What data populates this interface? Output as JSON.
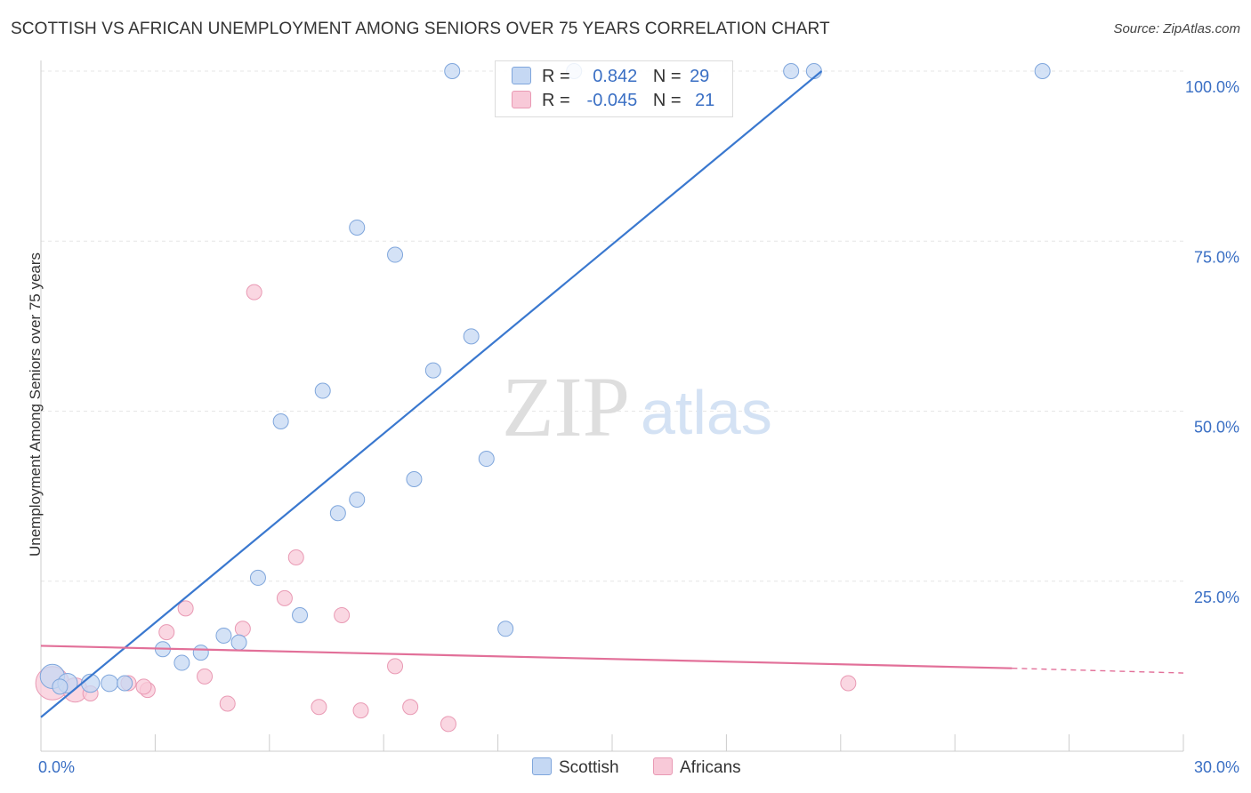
{
  "title": "SCOTTISH VS AFRICAN UNEMPLOYMENT AMONG SENIORS OVER 75 YEARS CORRELATION CHART",
  "source": "Source: ZipAtlas.com",
  "watermark": {
    "zip": "ZIP",
    "atlas": "atlas"
  },
  "stats": {
    "scottish": {
      "r_label": "R =",
      "r_value": "0.842",
      "n_label": "N =",
      "n_value": "29"
    },
    "africans": {
      "r_label": "R =",
      "r_value": "-0.045",
      "n_label": "N =",
      "n_value": "21"
    }
  },
  "legend": {
    "scottish": "Scottish",
    "africans": "Africans"
  },
  "colors": {
    "scottish_fill": "#c5d8f3",
    "scottish_stroke": "#7fa6dc",
    "scottish_line": "#3a78cf",
    "africans_fill": "#f8c9d8",
    "africans_stroke": "#e99ab4",
    "africans_line": "#e27099",
    "axis_text": "#3a6fc4",
    "grid": "#e6e6e6"
  },
  "chart_data": {
    "type": "scatter",
    "xlabel": "",
    "ylabel": "Unemployment Among Seniors over 75 years",
    "xlim": [
      0,
      30
    ],
    "ylim": [
      0,
      100
    ],
    "x_ticks": [
      "0.0%",
      "30.0%"
    ],
    "y_ticks": [
      "25.0%",
      "50.0%",
      "75.0%",
      "100.0%"
    ],
    "y_tick_values": [
      25,
      50,
      75,
      100
    ],
    "grid": true,
    "legend_position": "bottom-center",
    "series": [
      {
        "name": "Scottish",
        "points": [
          [
            0.3,
            11,
            1.6
          ],
          [
            0.7,
            10,
            1.3
          ],
          [
            1.3,
            10,
            1.2
          ],
          [
            1.8,
            10,
            1.1
          ],
          [
            2.2,
            10,
            1
          ],
          [
            3.2,
            15,
            1
          ],
          [
            3.7,
            13,
            1
          ],
          [
            4.2,
            14.5,
            1
          ],
          [
            4.8,
            17,
            1
          ],
          [
            5.2,
            16,
            1
          ],
          [
            5.7,
            25.5,
            1
          ],
          [
            6.3,
            48.5,
            1
          ],
          [
            6.8,
            20,
            1
          ],
          [
            7.4,
            53,
            1
          ],
          [
            7.8,
            35,
            1
          ],
          [
            8.3,
            37,
            1
          ],
          [
            8.3,
            77,
            1
          ],
          [
            9.3,
            73,
            1
          ],
          [
            9.8,
            40,
            1
          ],
          [
            10.3,
            56,
            1
          ],
          [
            10.8,
            100,
            1
          ],
          [
            11.3,
            61,
            1
          ],
          [
            11.7,
            43,
            1
          ],
          [
            12.2,
            18,
            1
          ],
          [
            14,
            100,
            1
          ],
          [
            19.7,
            100,
            1
          ],
          [
            20.3,
            100,
            1
          ],
          [
            26.3,
            100,
            1
          ],
          [
            0.5,
            9.5,
            1
          ]
        ],
        "trend": [
          [
            0,
            5
          ],
          [
            20.5,
            100
          ]
        ]
      },
      {
        "name": "Africans",
        "points": [
          [
            0.3,
            10,
            2.2
          ],
          [
            0.9,
            9,
            1.6
          ],
          [
            1.3,
            8.5,
            1
          ],
          [
            2.3,
            10,
            1
          ],
          [
            2.8,
            9,
            1
          ],
          [
            3.3,
            17.5,
            1
          ],
          [
            3.8,
            21,
            1
          ],
          [
            4.3,
            11,
            1
          ],
          [
            4.9,
            7,
            1
          ],
          [
            5.3,
            18,
            1
          ],
          [
            5.6,
            67.5,
            1
          ],
          [
            6.4,
            22.5,
            1
          ],
          [
            6.7,
            28.5,
            1
          ],
          [
            7.3,
            6.5,
            1
          ],
          [
            7.9,
            20,
            1
          ],
          [
            8.4,
            6,
            1
          ],
          [
            9.3,
            12.5,
            1
          ],
          [
            9.7,
            6.5,
            1
          ],
          [
            10.7,
            4,
            1
          ],
          [
            21.2,
            10,
            1
          ],
          [
            2.7,
            9.5,
            1
          ]
        ],
        "trend": [
          [
            0,
            15.5
          ],
          [
            25.5,
            12.2
          ]
        ],
        "trend_dashed": [
          [
            25.5,
            12.2
          ],
          [
            30,
            11.5
          ]
        ]
      }
    ]
  }
}
